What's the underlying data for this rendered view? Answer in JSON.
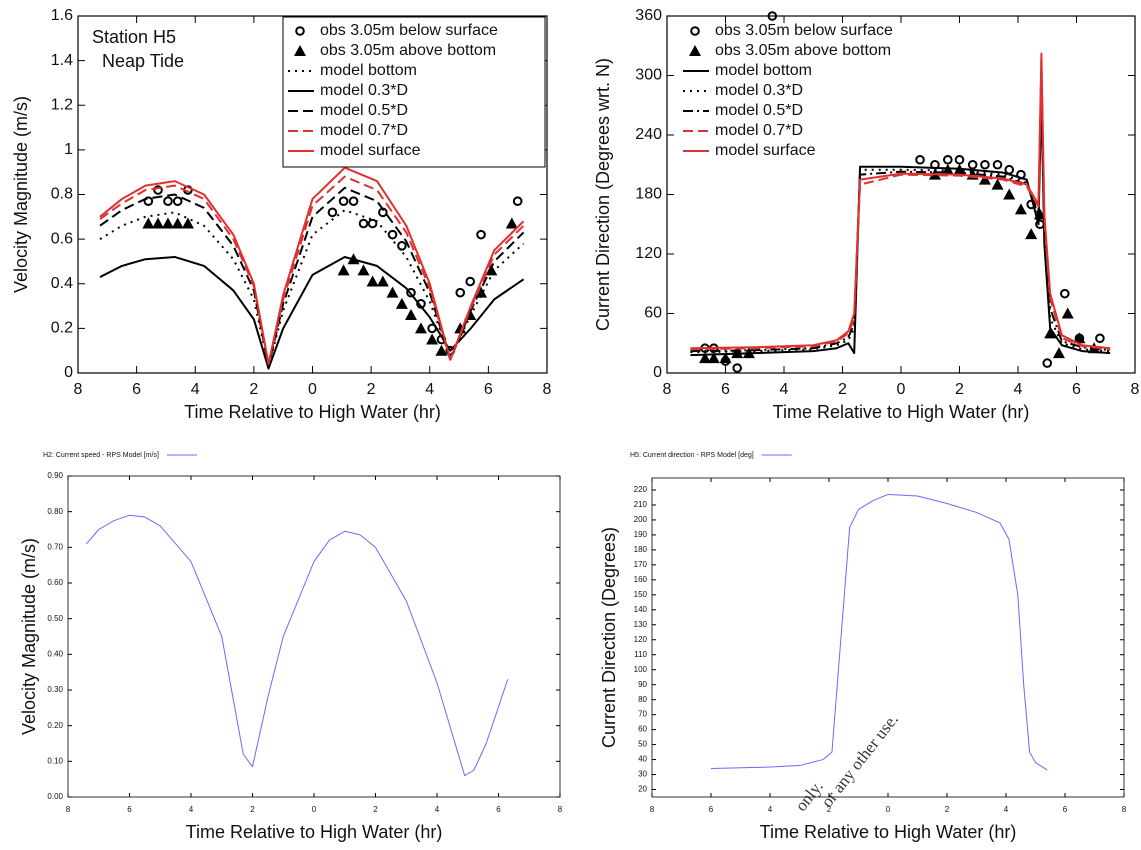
{
  "chart_data": [
    {
      "type": "line",
      "annotations": [
        "Station H5",
        "Neap Tide"
      ],
      "x_label": "Time Relative to High Water (hr)",
      "y_label": "Velocity Magnitude (m/s)",
      "xlim": [
        -8,
        8
      ],
      "xticks": [
        {
          "value": -8,
          "label": "8"
        },
        {
          "value": -6,
          "label": "6"
        },
        {
          "value": -4,
          "label": "4"
        },
        {
          "value": -2,
          "label": "2"
        },
        0,
        2,
        4,
        6,
        8
      ],
      "ylim": [
        0,
        1.6
      ],
      "yticks": [
        0,
        0.2,
        0.4,
        0.6,
        0.8,
        1,
        1.2,
        1.4,
        1.6
      ],
      "legend_frame": true,
      "series": [
        {
          "name": "obs 3.05m below surface",
          "color": "#000000",
          "marker": "circle",
          "x": [
            -5.6,
            -5.27,
            -4.93,
            -4.6,
            -4.25,
            0.68,
            1.06,
            1.4,
            1.74,
            2.05,
            2.4,
            2.73,
            3.05,
            3.36,
            3.7,
            4.08,
            4.4,
            4.7,
            5.04,
            5.38,
            5.75,
            7.0
          ],
          "values": [
            0.77,
            0.82,
            0.77,
            0.77,
            0.82,
            0.72,
            0.77,
            0.77,
            0.67,
            0.67,
            0.72,
            0.62,
            0.57,
            0.36,
            0.31,
            0.2,
            0.15,
            0.1,
            0.36,
            0.41,
            0.62,
            0.77
          ]
        },
        {
          "name": "obs 3.05m above bottom",
          "color": "#000000",
          "marker": "triangle",
          "x": [
            -5.6,
            -5.27,
            -4.93,
            -4.6,
            -4.25,
            1.06,
            1.4,
            1.74,
            2.05,
            2.4,
            2.73,
            3.05,
            3.36,
            3.7,
            4.08,
            4.4,
            5.04,
            5.38,
            5.75,
            6.1,
            6.8
          ],
          "values": [
            0.67,
            0.67,
            0.67,
            0.67,
            0.67,
            0.46,
            0.51,
            0.46,
            0.41,
            0.41,
            0.36,
            0.31,
            0.26,
            0.2,
            0.15,
            0.1,
            0.2,
            0.26,
            0.36,
            0.46,
            0.67
          ]
        },
        {
          "name": "model bottom",
          "color": "#000000",
          "dash": "dotted",
          "x": [
            -7.25,
            -6.5,
            -5.7,
            -4.7,
            -3.7,
            -2.7,
            -2,
            -1.5,
            -1,
            0,
            1.1,
            2.2,
            3.2,
            4,
            4.7,
            5.4,
            6.2,
            7.2
          ],
          "values": [
            0.6,
            0.66,
            0.7,
            0.72,
            0.66,
            0.51,
            0.33,
            0.03,
            0.28,
            0.62,
            0.73,
            0.68,
            0.52,
            0.32,
            0.07,
            0.26,
            0.46,
            0.58
          ]
        },
        {
          "name": "model 0.3*D",
          "color": "#000000",
          "dash": "solid",
          "x": [
            -7.25,
            -6.5,
            -5.7,
            -4.7,
            -3.7,
            -2.7,
            -2,
            -1.5,
            -1,
            0,
            1.1,
            2.2,
            3.2,
            4,
            4.7,
            5.4,
            6.2,
            7.2
          ],
          "values": [
            0.43,
            0.48,
            0.51,
            0.52,
            0.48,
            0.37,
            0.24,
            0.02,
            0.2,
            0.44,
            0.52,
            0.48,
            0.38,
            0.25,
            0.1,
            0.2,
            0.33,
            0.42
          ]
        },
        {
          "name": "model 0.5*D",
          "color": "#000000",
          "dash": "dashed",
          "x": [
            -7.25,
            -6.5,
            -5.7,
            -4.7,
            -3.7,
            -2.7,
            -2,
            -1.5,
            -1,
            0,
            1.1,
            2.2,
            3.2,
            4,
            4.7,
            5.4,
            6.2,
            7.2
          ],
          "values": [
            0.66,
            0.73,
            0.78,
            0.8,
            0.74,
            0.57,
            0.37,
            0.03,
            0.31,
            0.7,
            0.83,
            0.77,
            0.59,
            0.36,
            0.06,
            0.28,
            0.5,
            0.63
          ]
        },
        {
          "name": "model 0.7*D",
          "color": "#e03030",
          "dash": "dashed",
          "x": [
            -7.25,
            -6.5,
            -5.7,
            -4.7,
            -3.7,
            -2.7,
            -2,
            -1.5,
            -1,
            0,
            1.1,
            2.2,
            3.2,
            4,
            4.7,
            5.4,
            6.2,
            7.2
          ],
          "values": [
            0.69,
            0.76,
            0.82,
            0.84,
            0.78,
            0.6,
            0.39,
            0.04,
            0.33,
            0.75,
            0.88,
            0.82,
            0.63,
            0.38,
            0.06,
            0.29,
            0.53,
            0.66
          ]
        },
        {
          "name": "model surface",
          "color": "#e03030",
          "dash": "solid",
          "x": [
            -7.25,
            -6.5,
            -5.7,
            -4.7,
            -3.7,
            -2.7,
            -2,
            -1.5,
            -1,
            0,
            1.1,
            2.2,
            3.2,
            4,
            4.7,
            5.4,
            6.2,
            7.2
          ],
          "values": [
            0.7,
            0.78,
            0.84,
            0.86,
            0.8,
            0.62,
            0.4,
            0.04,
            0.35,
            0.78,
            0.92,
            0.86,
            0.66,
            0.4,
            0.06,
            0.3,
            0.55,
            0.68
          ]
        }
      ]
    },
    {
      "type": "line",
      "x_label": "Time Relative to High Water (hr)",
      "y_label": "Current Direction (Degrees wrt. N)",
      "xlim": [
        -8,
        8
      ],
      "xticks": [
        {
          "value": -8,
          "label": "8"
        },
        {
          "value": -6,
          "label": "6"
        },
        {
          "value": -4,
          "label": "4"
        },
        {
          "value": -2,
          "label": "2"
        },
        0,
        2,
        4,
        6,
        8
      ],
      "ylim": [
        0,
        360
      ],
      "yticks": [
        0,
        60,
        120,
        180,
        240,
        300,
        360
      ],
      "legend_frame": false,
      "series": [
        {
          "name": "obs 3.05m below surface",
          "color": "#000000",
          "marker": "circle",
          "x": [
            -6.7,
            -6.4,
            -6.0,
            -5.6,
            -4.4,
            0.65,
            1.16,
            1.6,
            2.0,
            2.45,
            2.87,
            3.3,
            3.7,
            4.1,
            4.45,
            4.75,
            5.0,
            5.6,
            6.1,
            6.8
          ],
          "values": [
            25,
            25,
            12,
            5,
            360,
            215,
            210,
            215,
            215,
            210,
            210,
            210,
            205,
            200,
            170,
            150,
            10,
            80,
            35,
            35
          ]
        },
        {
          "name": "obs 3.05m above bottom",
          "color": "#000000",
          "marker": "triangle",
          "x": [
            -6.7,
            -6.4,
            -6.0,
            -5.6,
            -5.2,
            1.16,
            1.6,
            2.0,
            2.45,
            2.87,
            3.3,
            3.7,
            4.1,
            4.45,
            4.75,
            5.1,
            5.4,
            5.7,
            6.1,
            6.6
          ],
          "values": [
            15,
            15,
            15,
            20,
            20,
            200,
            205,
            205,
            200,
            195,
            190,
            180,
            165,
            140,
            160,
            40,
            20,
            60,
            35,
            25
          ]
        },
        {
          "name": "model bottom",
          "color": "#000000",
          "dash": "solid",
          "x": [
            -7.2,
            -5,
            -3,
            -2.2,
            -1.8,
            -1.6,
            -1.4,
            0,
            2,
            3.5,
            4.3,
            4.7,
            4.8,
            4.9,
            5.1,
            5.5,
            6.2,
            7.15
          ],
          "values": [
            18,
            20,
            22,
            25,
            30,
            20,
            208,
            208,
            206,
            202,
            195,
            150,
            280,
            130,
            45,
            28,
            22,
            20
          ]
        },
        {
          "name": "model 0.3*D",
          "color": "#000000",
          "dash": "dotted",
          "x": [
            -7.2,
            -5,
            -3,
            -2.2,
            -1.8,
            -1.6,
            -1.4,
            0,
            2,
            3.5,
            4.3,
            4.7,
            4.8,
            4.9,
            5.1,
            5.5,
            6.2,
            7.15
          ],
          "values": [
            21,
            22,
            24,
            28,
            33,
            45,
            205,
            205,
            204,
            200,
            192,
            158,
            290,
            140,
            55,
            30,
            24,
            22
          ]
        },
        {
          "name": "model 0.5*D",
          "color": "#000000",
          "dash": "dashdot",
          "x": [
            -7.2,
            -5,
            -3,
            -2.2,
            -1.8,
            -1.6,
            -1.4,
            0,
            2,
            3.5,
            4.3,
            4.7,
            4.8,
            4.9,
            5.1,
            5.5,
            6.2,
            7.15
          ],
          "values": [
            22,
            23,
            25,
            30,
            36,
            50,
            200,
            203,
            202,
            198,
            190,
            160,
            300,
            150,
            65,
            32,
            26,
            23
          ]
        },
        {
          "name": "model 0.7*D",
          "color": "#e03030",
          "dash": "dashed",
          "x": [
            -7.2,
            -5,
            -3,
            -2.2,
            -1.8,
            -1.6,
            -1.4,
            0,
            2,
            3.5,
            4.3,
            4.7,
            4.8,
            4.9,
            5.1,
            5.5,
            6.2,
            7.15
          ],
          "values": [
            24,
            25,
            27,
            32,
            40,
            55,
            190,
            200,
            199,
            195,
            188,
            168,
            315,
            155,
            75,
            35,
            27,
            24
          ]
        },
        {
          "name": "model surface",
          "color": "#e03030",
          "dash": "solid",
          "x": [
            -7.2,
            -5,
            -3,
            -2.2,
            -1.8,
            -1.6,
            -1.4,
            0,
            2,
            3.5,
            4.3,
            4.7,
            4.8,
            4.9,
            5.1,
            5.5,
            6.2,
            7.15
          ],
          "values": [
            25,
            26,
            28,
            33,
            42,
            60,
            195,
            201,
            200,
            196,
            190,
            170,
            322,
            160,
            80,
            38,
            28,
            25
          ]
        }
      ]
    },
    {
      "type": "line",
      "x_label": "Time Relative to High Water (hr)",
      "y_label": "Velocity Magnitude (m/s)",
      "legend_after": true,
      "xlim": [
        -8,
        8
      ],
      "xticks": [
        {
          "value": -8,
          "label": "8"
        },
        {
          "value": -6,
          "label": "6"
        },
        {
          "value": -4,
          "label": "4"
        },
        {
          "value": -2,
          "label": "2"
        },
        0,
        2,
        4,
        6,
        8
      ],
      "ylim": [
        0,
        0.9
      ],
      "yticks": [
        {
          "value": 0,
          "label": "0.00"
        },
        {
          "value": 0.1,
          "label": "0.10"
        },
        {
          "value": 0.2,
          "label": "0.20"
        },
        {
          "value": 0.3,
          "label": "0.30"
        },
        {
          "value": 0.4,
          "label": "0.40"
        },
        {
          "value": 0.5,
          "label": "0.50"
        },
        {
          "value": 0.6,
          "label": "0.60"
        },
        {
          "value": 0.7,
          "label": "0.70"
        },
        {
          "value": 0.8,
          "label": "0.80"
        },
        {
          "value": 0.9,
          "label": "0.90"
        }
      ],
      "series": [
        {
          "name": "H2: Current speed - RPS Model [m/s]",
          "color": "#6a6aff",
          "dash": "solid",
          "x": [
            -7.4,
            -7.0,
            -6.5,
            -6.0,
            -5.5,
            -5,
            -4,
            -3,
            -2.3,
            -2.0,
            -1.5,
            -1,
            0,
            0.5,
            1.0,
            1.5,
            2,
            3,
            4,
            4.9,
            5.2,
            5.6,
            6.3
          ],
          "values": [
            0.71,
            0.75,
            0.775,
            0.79,
            0.785,
            0.76,
            0.66,
            0.45,
            0.12,
            0.085,
            0.28,
            0.45,
            0.66,
            0.72,
            0.745,
            0.735,
            0.7,
            0.55,
            0.32,
            0.06,
            0.075,
            0.15,
            0.33
          ]
        }
      ]
    },
    {
      "type": "line",
      "x_label": "Time Relative to High Water (hr)",
      "y_label": "Current Direction (Degrees)",
      "legend_after": true,
      "xlim": [
        -8,
        8
      ],
      "xticks": [
        {
          "value": -8,
          "label": "8"
        },
        {
          "value": -6,
          "label": "6"
        },
        {
          "value": -4,
          "label": "4"
        },
        {
          "value": -2,
          "label": "2"
        },
        0,
        2,
        4,
        6,
        8
      ],
      "ylim": [
        15,
        228
      ],
      "yticks": [
        20,
        30,
        40,
        50,
        60,
        70,
        80,
        90,
        100,
        110,
        120,
        130,
        140,
        150,
        160,
        170,
        180,
        190,
        200,
        210,
        220
      ],
      "series": [
        {
          "name": "H5: Current direction - RPS Model  [deg]",
          "color": "#6a6aff",
          "dash": "solid",
          "x": [
            -6,
            -4,
            -3,
            -2.2,
            -1.9,
            -1.6,
            -1.3,
            -1,
            -0.5,
            0,
            1,
            2,
            3,
            3.8,
            4.1,
            4.4,
            4.6,
            4.8,
            5.0,
            5.4
          ],
          "values": [
            34,
            35,
            36,
            40,
            45,
            120,
            195,
            207,
            213,
            217,
            216,
            211,
            205,
            198,
            187,
            150,
            90,
            45,
            38,
            33
          ]
        }
      ]
    }
  ],
  "watermark": [
    "only.",
    "or any other use."
  ]
}
